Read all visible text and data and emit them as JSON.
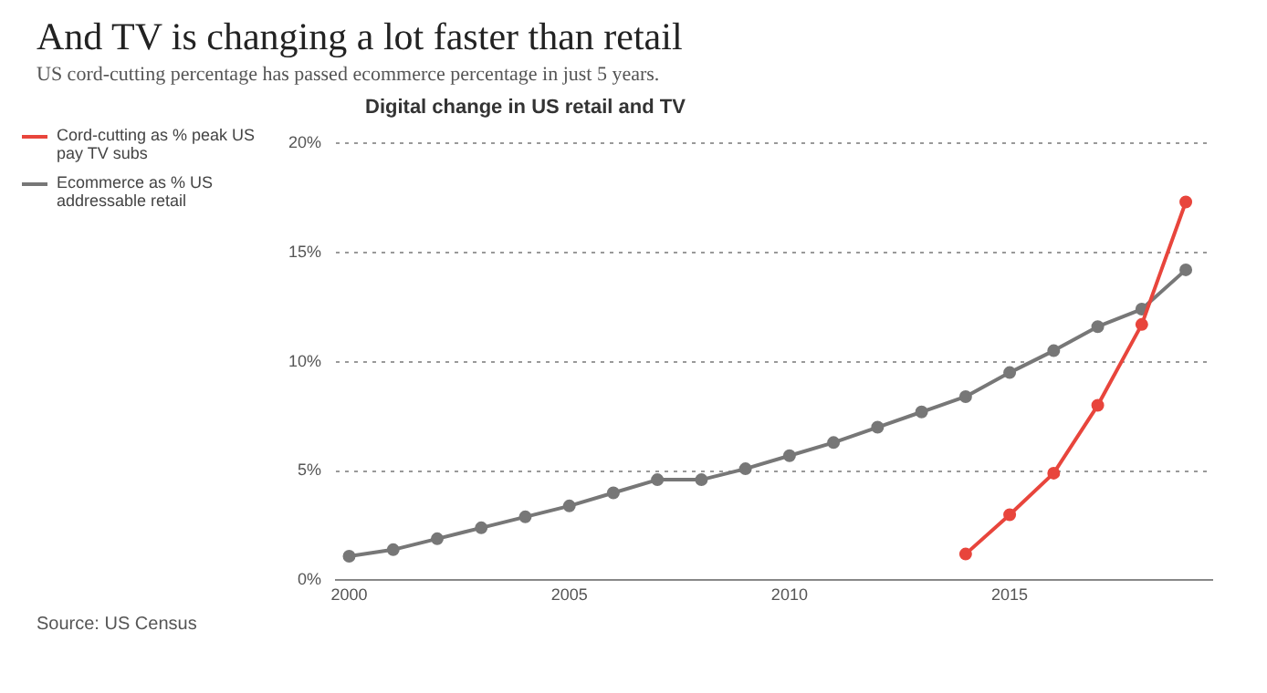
{
  "chart_data": {
    "type": "line",
    "title": "And TV is changing a lot faster than retail",
    "subtitle": "US cord-cutting percentage has passed ecommerce percentage in just 5 years.",
    "annotations": [
      "Digital change in US retail and TV",
      "Source: US Census"
    ],
    "series": [
      {
        "name": "Cord-cutting as % peak US pay TV subs",
        "color": "#e8453c",
        "x": [
          2014,
          2015,
          2016,
          2017,
          2018,
          2019
        ],
        "values": [
          1.2,
          3.0,
          4.9,
          8.0,
          11.7,
          17.3
        ]
      },
      {
        "name": "Ecommerce as % US addressable retail",
        "color": "#777777",
        "x": [
          2000,
          2001,
          2002,
          2003,
          2004,
          2005,
          2006,
          2007,
          2008,
          2009,
          2010,
          2011,
          2012,
          2013,
          2014,
          2015,
          2016,
          2017,
          2018,
          2019
        ],
        "values": [
          1.1,
          1.4,
          1.9,
          2.4,
          2.9,
          3.4,
          4.0,
          4.6,
          4.6,
          5.1,
          5.7,
          6.3,
          7.0,
          7.7,
          8.4,
          9.5,
          10.5,
          11.6,
          12.4,
          14.2
        ]
      }
    ],
    "xlim": [
      1999.7,
      2019.6
    ],
    "xticks": [
      2000,
      2005,
      2010,
      2015
    ],
    "ylim": [
      0,
      20
    ],
    "yticks": [
      {
        "value": 0,
        "label": "0%"
      },
      {
        "value": 5,
        "label": "5%"
      },
      {
        "value": 10,
        "label": "10%"
      },
      {
        "value": 15,
        "label": "15%"
      },
      {
        "value": 20,
        "label": "20%"
      }
    ],
    "grid": "y",
    "legend": "left",
    "marker": "circle",
    "line_style": "solid"
  }
}
